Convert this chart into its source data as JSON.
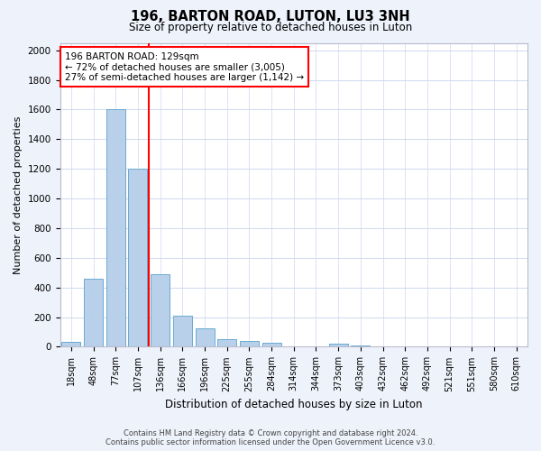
{
  "title": "196, BARTON ROAD, LUTON, LU3 3NH",
  "subtitle": "Size of property relative to detached houses in Luton",
  "xlabel": "Distribution of detached houses by size in Luton",
  "ylabel": "Number of detached properties",
  "footer_line1": "Contains HM Land Registry data © Crown copyright and database right 2024.",
  "footer_line2": "Contains public sector information licensed under the Open Government Licence v3.0.",
  "bar_labels": [
    "18sqm",
    "48sqm",
    "77sqm",
    "107sqm",
    "136sqm",
    "166sqm",
    "196sqm",
    "225sqm",
    "255sqm",
    "284sqm",
    "314sqm",
    "344sqm",
    "373sqm",
    "403sqm",
    "432sqm",
    "462sqm",
    "492sqm",
    "521sqm",
    "551sqm",
    "580sqm",
    "610sqm"
  ],
  "bar_values": [
    35,
    460,
    1600,
    1200,
    490,
    210,
    125,
    50,
    40,
    25,
    0,
    0,
    20,
    10,
    0,
    0,
    0,
    0,
    0,
    0,
    0
  ],
  "bar_color": "#b8d0ea",
  "bar_edgecolor": "#6aabd2",
  "vline_index": 4,
  "vline_color": "red",
  "annotation_text": "196 BARTON ROAD: 129sqm\n← 72% of detached houses are smaller (3,005)\n27% of semi-detached houses are larger (1,142) →",
  "annotation_box_color": "white",
  "annotation_box_edgecolor": "red",
  "ylim": [
    0,
    2050
  ],
  "yticks": [
    0,
    200,
    400,
    600,
    800,
    1000,
    1200,
    1400,
    1600,
    1800,
    2000
  ],
  "bg_color": "#eef2fb",
  "axes_bg_color": "#ffffff",
  "grid_color": "#d0d8ee"
}
